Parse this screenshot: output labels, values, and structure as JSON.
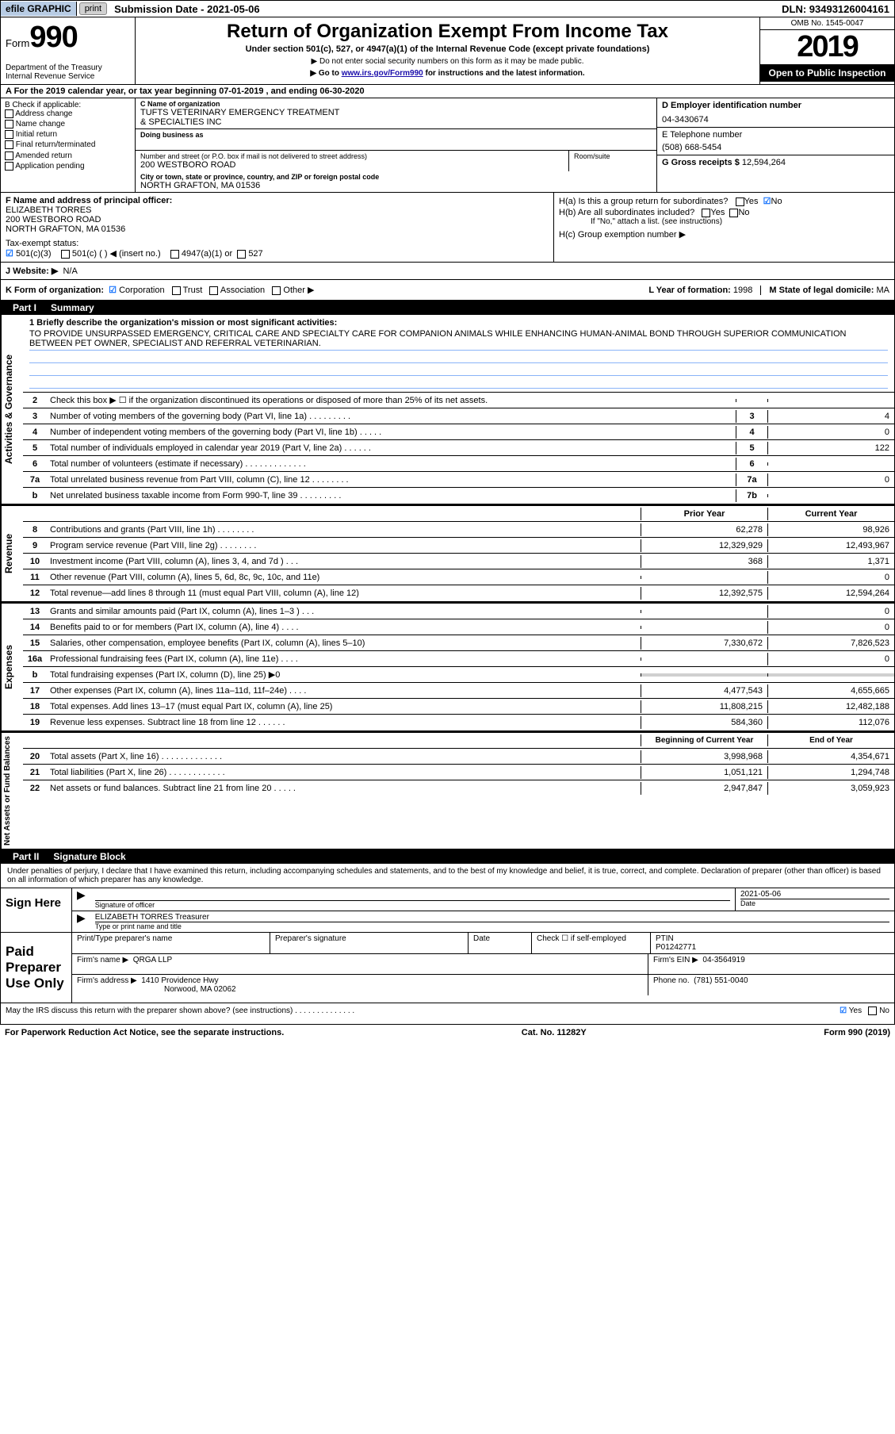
{
  "topbar": {
    "efile": "efile GRAPHIC",
    "print": "print",
    "subdate_label": "Submission Date - 2021-05-06",
    "dln": "DLN: 93493126004161"
  },
  "header": {
    "form_word": "Form",
    "form_num": "990",
    "dept": "Department of the Treasury\nInternal Revenue Service",
    "title": "Return of Organization Exempt From Income Tax",
    "sub1": "Under section 501(c), 527, or 4947(a)(1) of the Internal Revenue Code (except private foundations)",
    "sub2a": "▶ Do not enter social security numbers on this form as it may be made public.",
    "sub2b_pre": "▶ Go to ",
    "sub2b_link": "www.irs.gov/Form990",
    "sub2b_post": " for instructions and the latest information.",
    "omb": "OMB No. 1545-0047",
    "year": "2019",
    "open": "Open to Public Inspection"
  },
  "rowA": "A For the 2019 calendar year, or tax year beginning 07-01-2019    , and ending 06-30-2020",
  "colB": {
    "hdr": "B Check if applicable:",
    "items": [
      "Address change",
      "Name change",
      "Initial return",
      "Final return/terminated",
      "Amended return",
      "Application pending"
    ]
  },
  "colC": {
    "name_lbl": "C Name of organization",
    "name": "TUFTS VETERINARY EMERGENCY TREATMENT\n& SPECIALTIES INC",
    "dba_lbl": "Doing business as",
    "addr_lbl": "Number and street (or P.O. box if mail is not delivered to street address)",
    "room_lbl": "Room/suite",
    "addr": "200 WESTBORO ROAD",
    "city_lbl": "City or town, state or province, country, and ZIP or foreign postal code",
    "city": "NORTH GRAFTON, MA  01536"
  },
  "colD": {
    "ein_lbl": "D Employer identification number",
    "ein": "04-3430674",
    "tel_lbl": "E Telephone number",
    "tel": "(508) 668-5454",
    "gross_lbl": "G Gross receipts $",
    "gross": "12,594,264"
  },
  "colF": {
    "lbl": "F  Name and address of principal officer:",
    "name": "ELIZABETH TORRES",
    "addr1": "200 WESTBORO ROAD",
    "addr2": "NORTH GRAFTON, MA  01536"
  },
  "colH": {
    "ha": "H(a)  Is this a group return for subordinates?",
    "hb": "H(b)  Are all subordinates included?",
    "hb_note": "If \"No,\" attach a list. (see instructions)",
    "hc": "H(c)  Group exemption number ▶",
    "yes": "Yes",
    "no": "No"
  },
  "rowI": {
    "lbl": "Tax-exempt status:",
    "opt1": "501(c)(3)",
    "opt2": "501(c) (   ) ◀ (insert no.)",
    "opt3": "4947(a)(1) or",
    "opt4": "527"
  },
  "rowJ": {
    "lbl": "J   Website: ▶",
    "val": "N/A"
  },
  "rowK": {
    "lbl": "K Form of organization:",
    "opts": [
      "Corporation",
      "Trust",
      "Association",
      "Other ▶"
    ],
    "l_lbl": "L Year of formation:",
    "l_val": "1998",
    "m_lbl": "M State of legal domicile:",
    "m_val": "MA"
  },
  "part1": {
    "num": "Part I",
    "title": "Summary"
  },
  "mission": {
    "lbl": "1  Briefly describe the organization's mission or most significant activities:",
    "text": "TO PROVIDE UNSURPASSED EMERGENCY, CRITICAL CARE AND SPECIALTY CARE FOR COMPANION ANIMALS WHILE ENHANCING HUMAN-ANIMAL BOND THROUGH SUPERIOR COMMUNICATION BETWEEN PET OWNER, SPECIALIST AND REFERRAL VETERINARIAN."
  },
  "gov_lines": [
    {
      "n": "2",
      "d": "Check this box ▶ ☐  if the organization discontinued its operations or disposed of more than 25% of its net assets.",
      "box": "",
      "v": ""
    },
    {
      "n": "3",
      "d": "Number of voting members of the governing body (Part VI, line 1a)   .   .   .   .   .   .   .   .   .",
      "box": "3",
      "v": "4"
    },
    {
      "n": "4",
      "d": "Number of independent voting members of the governing body (Part VI, line 1b)   .   .   .   .   .",
      "box": "4",
      "v": "0"
    },
    {
      "n": "5",
      "d": "Total number of individuals employed in calendar year 2019 (Part V, line 2a)   .   .   .   .   .   .",
      "box": "5",
      "v": "122"
    },
    {
      "n": "6",
      "d": "Total number of volunteers (estimate if necessary)   .   .   .   .   .   .   .   .   .   .   .   .   .",
      "box": "6",
      "v": ""
    },
    {
      "n": "7a",
      "d": "Total unrelated business revenue from Part VIII, column (C), line 12   .   .   .   .   .   .   .   .",
      "box": "7a",
      "v": "0"
    },
    {
      "n": "b",
      "d": "Net unrelated business taxable income from Form 990-T, line 39   .   .   .   .   .   .   .   .   .",
      "box": "7b",
      "v": ""
    }
  ],
  "rev_hdr": {
    "py": "Prior Year",
    "cy": "Current Year"
  },
  "rev_lines": [
    {
      "n": "8",
      "d": "Contributions and grants (Part VIII, line 1h)   .   .   .   .   .   .   .   .",
      "py": "62,278",
      "cy": "98,926"
    },
    {
      "n": "9",
      "d": "Program service revenue (Part VIII, line 2g)   .   .   .   .   .   .   .   .",
      "py": "12,329,929",
      "cy": "12,493,967"
    },
    {
      "n": "10",
      "d": "Investment income (Part VIII, column (A), lines 3, 4, and 7d )   .   .   .",
      "py": "368",
      "cy": "1,371"
    },
    {
      "n": "11",
      "d": "Other revenue (Part VIII, column (A), lines 5, 6d, 8c, 9c, 10c, and 11e)",
      "py": "",
      "cy": "0"
    },
    {
      "n": "12",
      "d": "Total revenue—add lines 8 through 11 (must equal Part VIII, column (A), line 12)",
      "py": "12,392,575",
      "cy": "12,594,264"
    }
  ],
  "exp_lines": [
    {
      "n": "13",
      "d": "Grants and similar amounts paid (Part IX, column (A), lines 1–3 )   .   .   .",
      "py": "",
      "cy": "0"
    },
    {
      "n": "14",
      "d": "Benefits paid to or for members (Part IX, column (A), line 4)   .   .   .   .",
      "py": "",
      "cy": "0"
    },
    {
      "n": "15",
      "d": "Salaries, other compensation, employee benefits (Part IX, column (A), lines 5–10)",
      "py": "7,330,672",
      "cy": "7,826,523"
    },
    {
      "n": "16a",
      "d": "Professional fundraising fees (Part IX, column (A), line 11e)   .   .   .   .",
      "py": "",
      "cy": "0"
    },
    {
      "n": "b",
      "d": "Total fundraising expenses (Part IX, column (D), line 25) ▶0",
      "py": "grey",
      "cy": "grey"
    },
    {
      "n": "17",
      "d": "Other expenses (Part IX, column (A), lines 11a–11d, 11f–24e)   .   .   .   .",
      "py": "4,477,543",
      "cy": "4,655,665"
    },
    {
      "n": "18",
      "d": "Total expenses. Add lines 13–17 (must equal Part IX, column (A), line 25)",
      "py": "11,808,215",
      "cy": "12,482,188"
    },
    {
      "n": "19",
      "d": "Revenue less expenses. Subtract line 18 from line 12   .   .   .   .   .   .",
      "py": "584,360",
      "cy": "112,076"
    }
  ],
  "net_hdr": {
    "py": "Beginning of Current Year",
    "cy": "End of Year"
  },
  "net_lines": [
    {
      "n": "20",
      "d": "Total assets (Part X, line 16)   .   .   .   .   .   .   .   .   .   .   .   .   .",
      "py": "3,998,968",
      "cy": "4,354,671"
    },
    {
      "n": "21",
      "d": "Total liabilities (Part X, line 26)   .   .   .   .   .   .   .   .   .   .   .   .",
      "py": "1,051,121",
      "cy": "1,294,748"
    },
    {
      "n": "22",
      "d": "Net assets or fund balances. Subtract line 21 from line 20   .   .   .   .   .",
      "py": "2,947,847",
      "cy": "3,059,923"
    }
  ],
  "part2": {
    "num": "Part II",
    "title": "Signature Block"
  },
  "sig": {
    "decl": "Under penalties of perjury, I declare that I have examined this return, including accompanying schedules and statements, and to the best of my knowledge and belief, it is true, correct, and complete. Declaration of preparer (other than officer) is based on all information of which preparer has any knowledge.",
    "sign_here": "Sign Here",
    "sig_officer": "Signature of officer",
    "date": "Date",
    "date_val": "2021-05-06",
    "name_title": "ELIZABETH TORRES  Treasurer",
    "name_lbl": "Type or print name and title",
    "paid": "Paid Preparer Use Only",
    "prep_name_lbl": "Print/Type preparer's name",
    "prep_sig_lbl": "Preparer's signature",
    "prep_date_lbl": "Date",
    "check_lbl": "Check ☐ if self-employed",
    "ptin_lbl": "PTIN",
    "ptin": "P01242771",
    "firm_name_lbl": "Firm's name    ▶",
    "firm_name": "QRGA LLP",
    "firm_ein_lbl": "Firm's EIN ▶",
    "firm_ein": "04-3564919",
    "firm_addr_lbl": "Firm's address ▶",
    "firm_addr": "1410 Providence Hwy",
    "firm_city": "Norwood, MA  02062",
    "phone_lbl": "Phone no.",
    "phone": "(781) 551-0040",
    "may_irs": "May the IRS discuss this return with the preparer shown above? (see instructions)   .   .   .   .   .   .   .   .   .   .   .   .   .   ."
  },
  "footer": {
    "left": "For Paperwork Reduction Act Notice, see the separate instructions.",
    "mid": "Cat. No. 11282Y",
    "right": "Form 990 (2019)"
  },
  "vtabs": {
    "gov": "Activities & Governance",
    "rev": "Revenue",
    "exp": "Expenses",
    "net": "Net Assets or Fund Balances"
  }
}
